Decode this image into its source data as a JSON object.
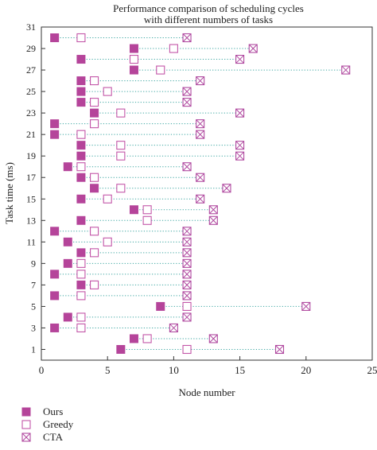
{
  "chart_data": {
    "type": "scatter",
    "title": "Performance comparison of scheduling cycles with different numbers of tasks",
    "title_lines": [
      "Performance comparison of scheduling cycles",
      "with different numbers of tasks"
    ],
    "xlabel": "Node number",
    "ylabel": "Task time (ms)",
    "xlim": [
      0,
      25
    ],
    "ylim": [
      0,
      31
    ],
    "x_ticks": [
      "0",
      "5",
      "10",
      "15",
      "20",
      "25"
    ],
    "y_ticks": [
      "1",
      "3",
      "5",
      "7",
      "9",
      "11",
      "13",
      "15",
      "17",
      "19",
      "21",
      "23",
      "25",
      "27",
      "29",
      "31"
    ],
    "grid": false,
    "legend_position": "bottom-left",
    "colors": {
      "ours": "#b5449a",
      "greedy": "#c356a8",
      "cta": "#b04aa0",
      "connector": "#3aa5a0"
    },
    "y": [
      1,
      2,
      3,
      4,
      5,
      6,
      7,
      8,
      9,
      10,
      11,
      12,
      13,
      14,
      15,
      16,
      17,
      18,
      19,
      20,
      21,
      22,
      23,
      24,
      25,
      26,
      27,
      28,
      29,
      30
    ],
    "series": [
      {
        "name": "Ours",
        "marker": "filled-square",
        "values": [
          6,
          7,
          1,
          2,
          9,
          1,
          3,
          1,
          2,
          3,
          2,
          1,
          3,
          7,
          3,
          4,
          3,
          2,
          3,
          3,
          1,
          1,
          4,
          3,
          3,
          3,
          7,
          3,
          7,
          1
        ]
      },
      {
        "name": "Greedy",
        "marker": "open-square",
        "values": [
          11,
          8,
          3,
          3,
          11,
          3,
          4,
          3,
          3,
          4,
          5,
          4,
          8,
          8,
          5,
          6,
          4,
          3,
          6,
          6,
          3,
          4,
          6,
          4,
          5,
          4,
          9,
          7,
          10,
          3
        ]
      },
      {
        "name": "CTA",
        "marker": "crossed-square",
        "values": [
          18,
          13,
          10,
          11,
          20,
          11,
          11,
          11,
          11,
          11,
          11,
          11,
          13,
          13,
          12,
          14,
          12,
          11,
          15,
          15,
          12,
          12,
          15,
          11,
          11,
          12,
          23,
          15,
          16,
          11
        ]
      }
    ]
  }
}
